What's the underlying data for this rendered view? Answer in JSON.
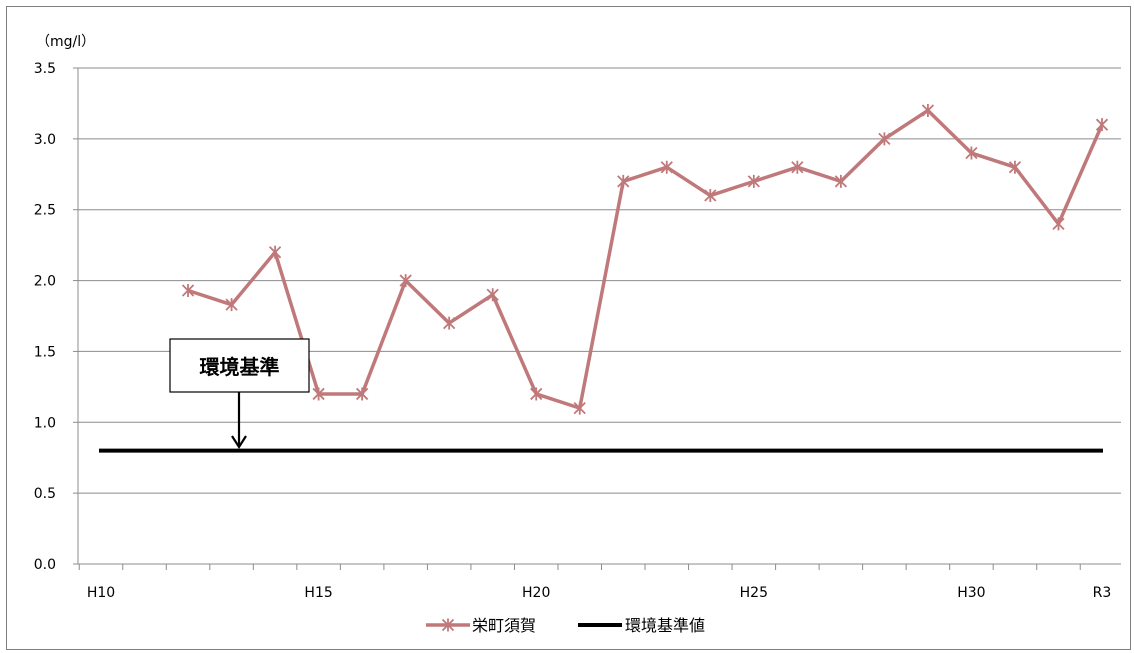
{
  "chart_data": {
    "type": "line",
    "unit_label": "（mg/l）",
    "x_tick_labels": [
      "H10",
      "H15",
      "H20",
      "H25",
      "H30",
      "R3"
    ],
    "y_tick_labels": [
      "0.0",
      "0.5",
      "1.0",
      "1.5",
      "2.0",
      "2.5",
      "3.0",
      "3.5"
    ],
    "ylim": [
      0,
      3.5
    ],
    "grid": true,
    "legend_position": "bottom",
    "annotation": "環境基準",
    "series": [
      {
        "name": "栄町須賀",
        "color": "#c0797a",
        "marker": "asterisk",
        "points": [
          {
            "x": "H12",
            "y": 1.93
          },
          {
            "x": "H13",
            "y": 1.83
          },
          {
            "x": "H14",
            "y": 2.2
          },
          {
            "x": "H15",
            "y": 1.2
          },
          {
            "x": "H16",
            "y": 1.2
          },
          {
            "x": "H17",
            "y": 2.0
          },
          {
            "x": "H18",
            "y": 1.7
          },
          {
            "x": "H19",
            "y": 1.9
          },
          {
            "x": "H20",
            "y": 1.2
          },
          {
            "x": "H21",
            "y": 1.1
          },
          {
            "x": "H22",
            "y": 2.7
          },
          {
            "x": "H23",
            "y": 2.8
          },
          {
            "x": "H24",
            "y": 2.6
          },
          {
            "x": "H25",
            "y": 2.7
          },
          {
            "x": "H26",
            "y": 2.8
          },
          {
            "x": "H27",
            "y": 2.7
          },
          {
            "x": "H28",
            "y": 3.0
          },
          {
            "x": "H29",
            "y": 3.2
          },
          {
            "x": "H30",
            "y": 2.9
          },
          {
            "x": "R1",
            "y": 2.8
          },
          {
            "x": "R2",
            "y": 2.4
          },
          {
            "x": "R3",
            "y": 3.1
          }
        ]
      },
      {
        "name": "環境基準値",
        "color": "#000000",
        "value": 0.8
      }
    ]
  }
}
